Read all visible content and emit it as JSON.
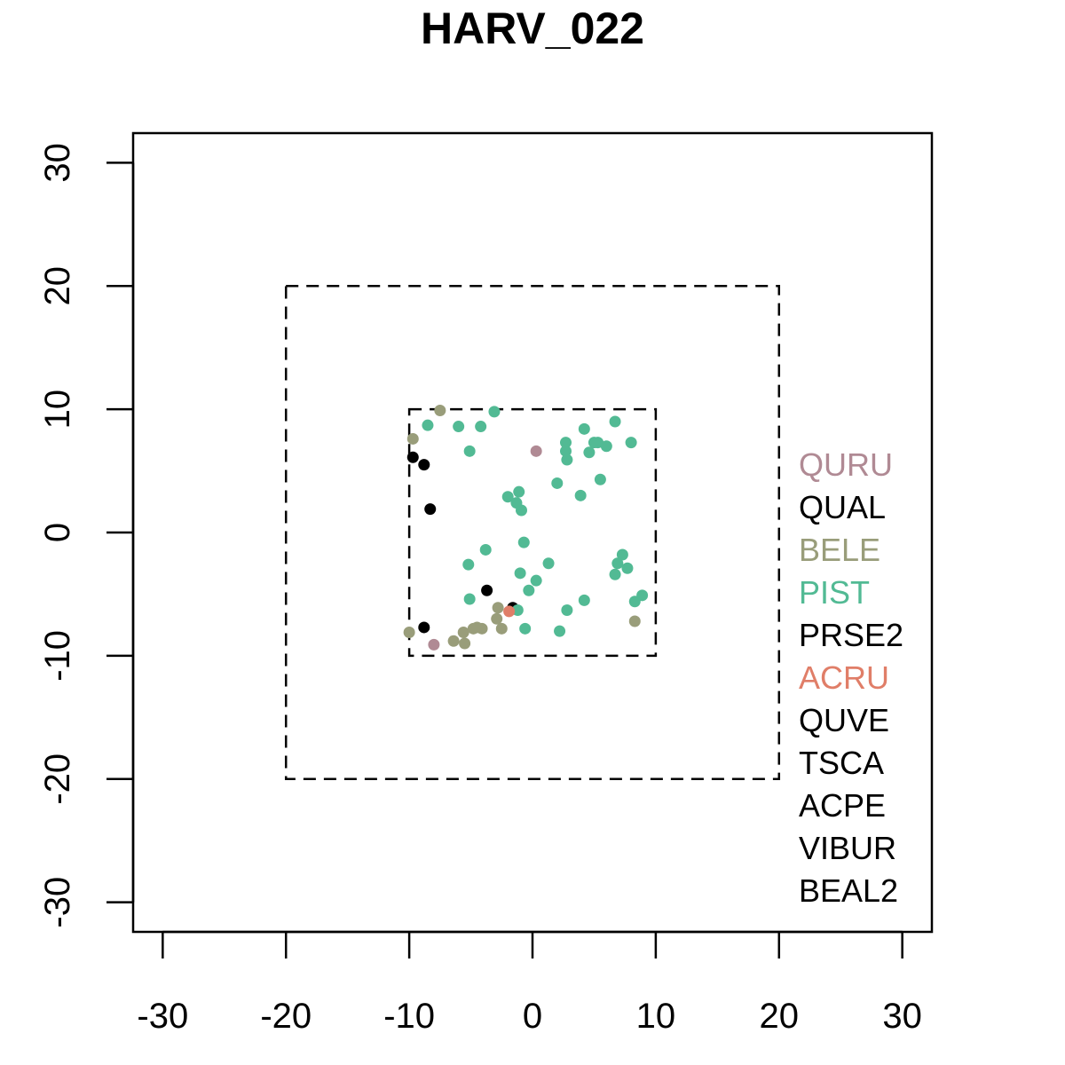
{
  "chart_data": {
    "type": "scatter",
    "title": "HARV_022",
    "xlabel": "",
    "ylabel": "",
    "xlim": [
      -32.4,
      32.4
    ],
    "ylim": [
      -32.4,
      32.4
    ],
    "x_ticks": [
      -30,
      -20,
      -10,
      0,
      10,
      20,
      30
    ],
    "y_ticks": [
      -30,
      -20,
      -10,
      0,
      10,
      20,
      30
    ],
    "x_tick_labels": [
      "-30",
      "-20",
      "-10",
      "0",
      "10",
      "20",
      "30"
    ],
    "y_tick_labels": [
      "-30",
      "-20",
      "-10",
      "0",
      "10",
      "20",
      "30"
    ],
    "grid": false,
    "reference_squares": [
      {
        "x": [
          -20,
          20
        ],
        "y": [
          -20,
          20
        ],
        "style": "dashed"
      },
      {
        "x": [
          -10,
          10
        ],
        "y": [
          -10,
          10
        ],
        "style": "dashed"
      }
    ],
    "legend": {
      "placement": "right",
      "entries": [
        {
          "label": "QURU",
          "color": "#B08A94"
        },
        {
          "label": "QUAL",
          "color": "#000000"
        },
        {
          "label": "BELE",
          "color": "#999D7A"
        },
        {
          "label": "PIST",
          "color": "#52BA94"
        },
        {
          "label": "PRSE2",
          "color": "#000000"
        },
        {
          "label": "ACRU",
          "color": "#E07E68"
        },
        {
          "label": "QUVE",
          "color": "#000000"
        },
        {
          "label": "TSCA",
          "color": "#000000"
        },
        {
          "label": "ACPE",
          "color": "#000000"
        },
        {
          "label": "VIBUR",
          "color": "#000000"
        },
        {
          "label": "BEAL2",
          "color": "#000000"
        }
      ]
    },
    "series": [
      {
        "name": "QURU",
        "color": "#B08A94",
        "points": [
          [
            0.3,
            6.6
          ],
          [
            -8.0,
            -9.1
          ]
        ]
      },
      {
        "name": "QUAL",
        "color": "#000000",
        "points": [
          [
            -9.7,
            6.1
          ],
          [
            -8.8,
            5.5
          ],
          [
            -8.3,
            1.9
          ],
          [
            -8.8,
            -7.7
          ],
          [
            -3.7,
            -4.7
          ],
          [
            -1.5,
            -6.2
          ],
          [
            -1.6,
            -6.1
          ]
        ]
      },
      {
        "name": "BELE",
        "color": "#999D7A",
        "points": [
          [
            -7.5,
            9.9
          ],
          [
            -9.7,
            7.6
          ],
          [
            -10.0,
            -8.1
          ],
          [
            -6.4,
            -8.8
          ],
          [
            -5.5,
            -9.0
          ],
          [
            -5.6,
            -8.1
          ],
          [
            -4.8,
            -7.8
          ],
          [
            -4.1,
            -7.8
          ],
          [
            -4.5,
            -7.7
          ],
          [
            -2.8,
            -6.1
          ],
          [
            -2.9,
            -7.0
          ],
          [
            -2.5,
            -7.8
          ],
          [
            8.3,
            -7.2
          ]
        ]
      },
      {
        "name": "PIST",
        "color": "#52BA94",
        "points": [
          [
            -3.1,
            9.8
          ],
          [
            -8.5,
            8.7
          ],
          [
            -6.0,
            8.6
          ],
          [
            -4.2,
            8.6
          ],
          [
            -5.1,
            6.6
          ],
          [
            6.7,
            9.0
          ],
          [
            4.2,
            8.4
          ],
          [
            2.7,
            7.3
          ],
          [
            2.7,
            6.6
          ],
          [
            2.8,
            5.9
          ],
          [
            5.0,
            7.3
          ],
          [
            5.3,
            7.3
          ],
          [
            6.0,
            7.0
          ],
          [
            4.6,
            6.5
          ],
          [
            8.0,
            7.3
          ],
          [
            5.5,
            4.3
          ],
          [
            2.0,
            4.0
          ],
          [
            3.9,
            3.0
          ],
          [
            -2.0,
            2.9
          ],
          [
            -1.1,
            3.3
          ],
          [
            -1.3,
            2.4
          ],
          [
            -0.9,
            1.8
          ],
          [
            -0.7,
            -0.8
          ],
          [
            -3.8,
            -1.4
          ],
          [
            -5.2,
            -2.6
          ],
          [
            1.3,
            -2.5
          ],
          [
            -1.0,
            -3.3
          ],
          [
            0.3,
            -3.9
          ],
          [
            -0.3,
            -4.7
          ],
          [
            -5.1,
            -5.4
          ],
          [
            4.2,
            -5.5
          ],
          [
            2.8,
            -6.3
          ],
          [
            -1.2,
            -6.3
          ],
          [
            -0.6,
            -7.8
          ],
          [
            2.2,
            -8.0
          ],
          [
            7.3,
            -1.8
          ],
          [
            6.9,
            -2.5
          ],
          [
            7.7,
            -2.9
          ],
          [
            6.7,
            -3.4
          ],
          [
            8.3,
            -5.6
          ],
          [
            8.9,
            -5.1
          ]
        ]
      },
      {
        "name": "ACRU",
        "color": "#E07E68",
        "points": [
          [
            -1.9,
            -6.4
          ]
        ]
      }
    ]
  }
}
